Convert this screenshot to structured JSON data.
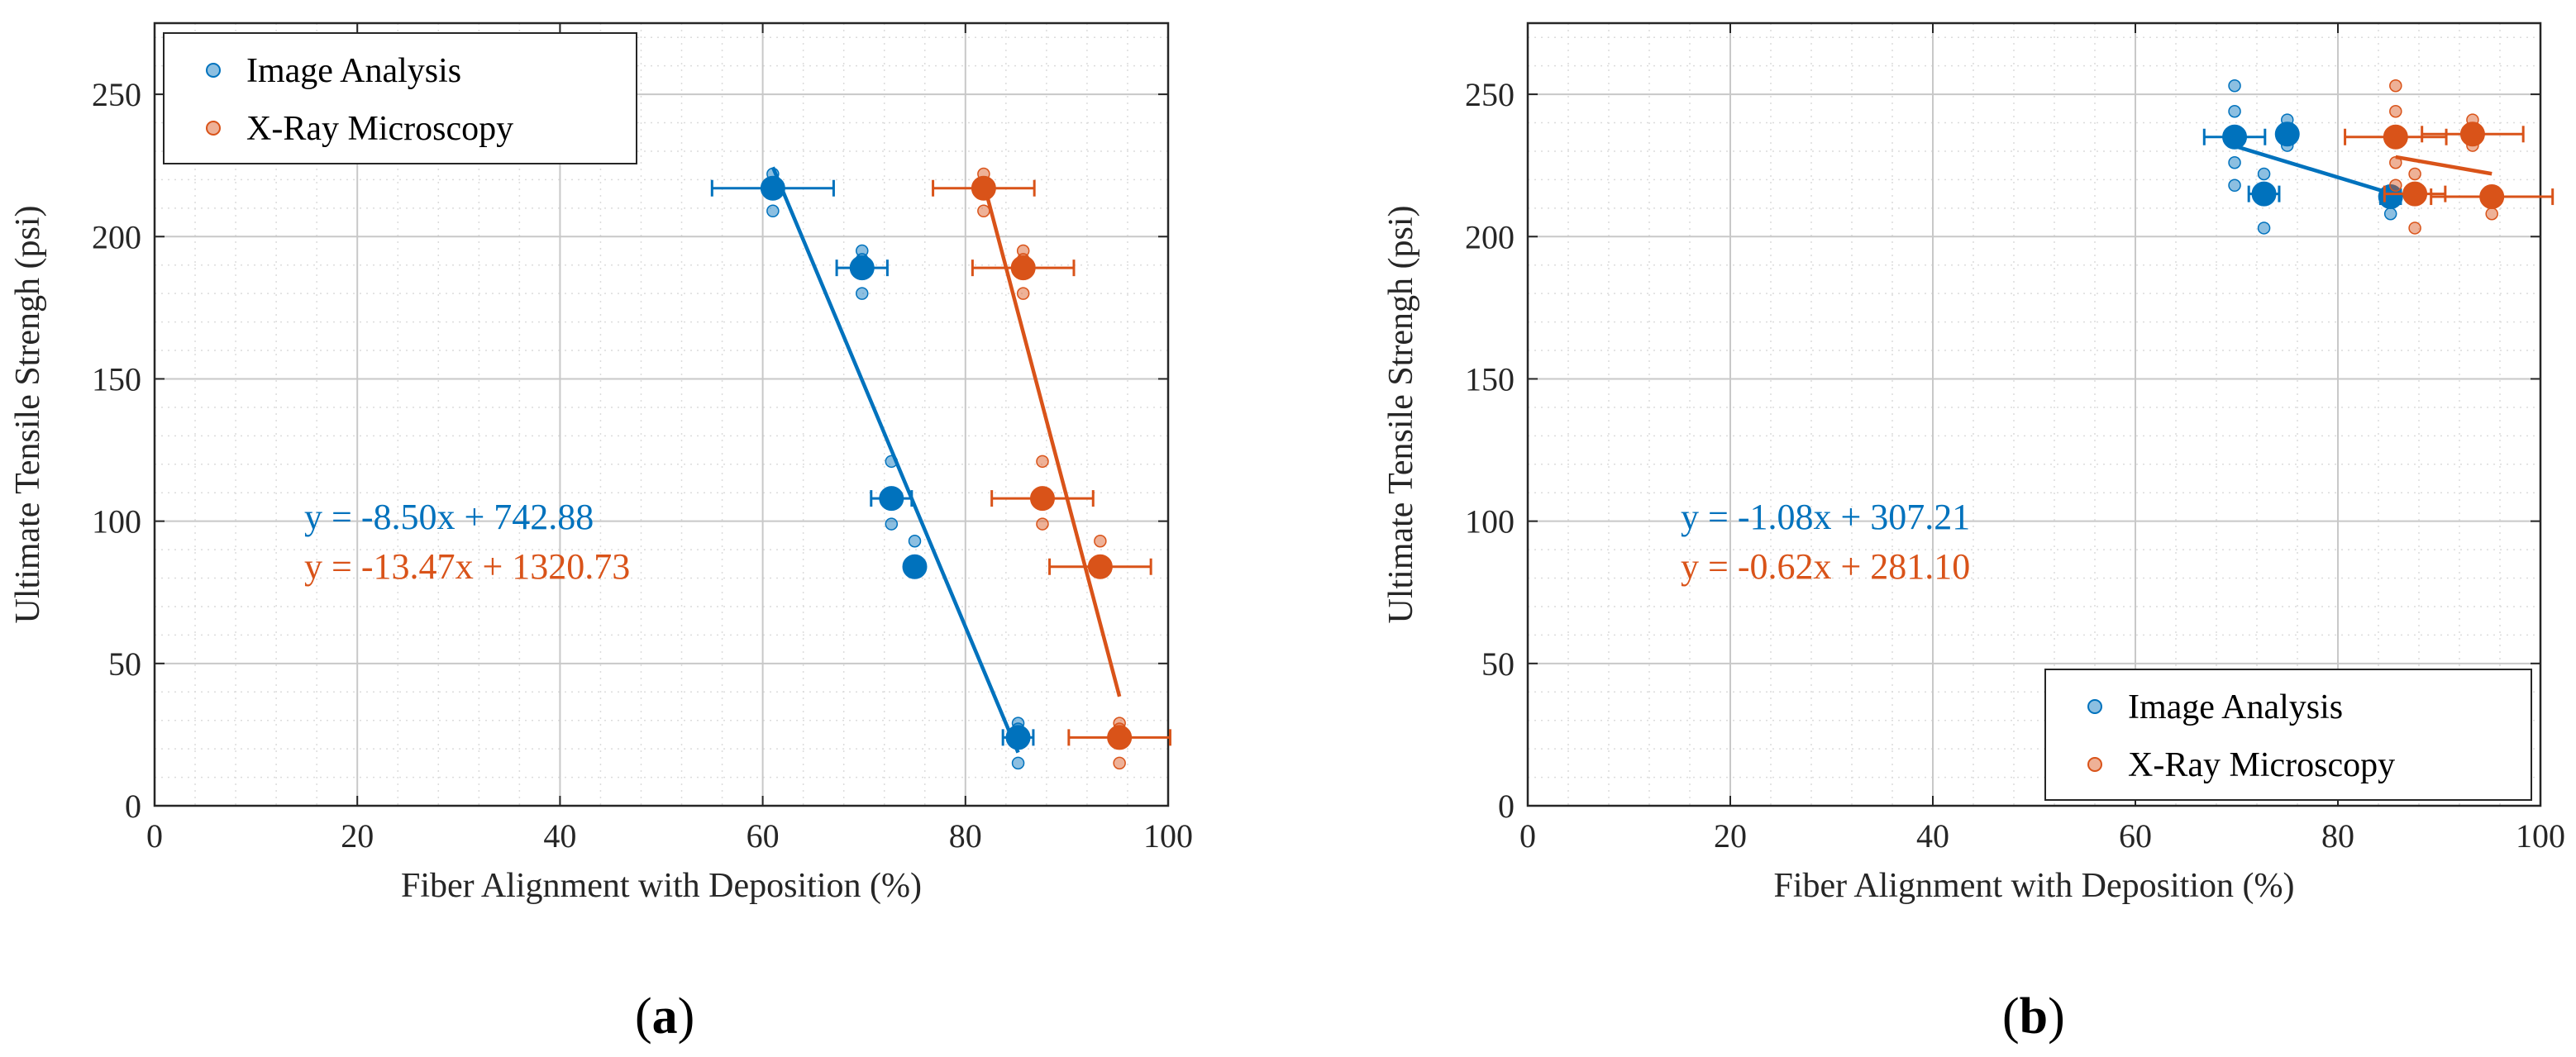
{
  "colors": {
    "blue": "#0072BD",
    "orange": "#D95319",
    "grid_major": "#c8c8c8",
    "grid_minor": "#dcdcdc",
    "axis": "#262626"
  },
  "chart_data": [
    {
      "type": "scatter",
      "panel_label": "a",
      "xlabel": "Fiber Alignment with Deposition (%)",
      "ylabel": "Ultimate Tensile Strengh (psi)",
      "xlim": [
        0,
        100
      ],
      "ylim": [
        0,
        275
      ],
      "xticks": [
        0,
        20,
        40,
        60,
        80,
        100
      ],
      "yticks": [
        0,
        50,
        100,
        150,
        200,
        250
      ],
      "grid": true,
      "minor_grid": true,
      "legend_position": "top-left",
      "series": [
        {
          "name": "Image Analysis",
          "color": "blue",
          "equation": "y = -8.50x + 742.88",
          "fit": {
            "slope": -8.5,
            "intercept": 742.88,
            "x_range": [
              61,
              85.2
            ]
          },
          "means": [
            {
              "x": 61.0,
              "y": 217,
              "xerr": 6
            },
            {
              "x": 69.8,
              "y": 189,
              "xerr": 2.5
            },
            {
              "x": 72.7,
              "y": 108,
              "xerr": 2
            },
            {
              "x": 75.0,
              "y": 84,
              "xerr": 0
            },
            {
              "x": 85.2,
              "y": 24,
              "xerr": 1.5
            }
          ],
          "samples": [
            {
              "x": 61.0,
              "y": 222
            },
            {
              "x": 61.0,
              "y": 209
            },
            {
              "x": 69.8,
              "y": 195
            },
            {
              "x": 69.8,
              "y": 180
            },
            {
              "x": 69.8,
              "y": 192
            },
            {
              "x": 72.7,
              "y": 121
            },
            {
              "x": 72.7,
              "y": 99
            },
            {
              "x": 75.0,
              "y": 93
            },
            {
              "x": 75.0,
              "y": 86
            },
            {
              "x": 85.2,
              "y": 29
            },
            {
              "x": 85.2,
              "y": 15
            },
            {
              "x": 85.2,
              "y": 27
            }
          ]
        },
        {
          "name": "X-Ray Microscopy",
          "color": "orange",
          "equation": "y = -13.47x + 1320.73",
          "fit": {
            "slope": -13.47,
            "intercept": 1320.73,
            "x_range": [
              82,
              95.2
            ]
          },
          "means": [
            {
              "x": 81.8,
              "y": 217,
              "xerr": 5
            },
            {
              "x": 85.7,
              "y": 189,
              "xerr": 5
            },
            {
              "x": 87.6,
              "y": 108,
              "xerr": 5
            },
            {
              "x": 93.3,
              "y": 84,
              "xerr": 5
            },
            {
              "x": 95.2,
              "y": 24,
              "xerr": 5
            }
          ],
          "samples": [
            {
              "x": 81.8,
              "y": 222
            },
            {
              "x": 81.8,
              "y": 209
            },
            {
              "x": 85.7,
              "y": 195
            },
            {
              "x": 85.7,
              "y": 180
            },
            {
              "x": 85.7,
              "y": 192
            },
            {
              "x": 87.6,
              "y": 121
            },
            {
              "x": 87.6,
              "y": 99
            },
            {
              "x": 93.3,
              "y": 93
            },
            {
              "x": 93.3,
              "y": 86
            },
            {
              "x": 95.2,
              "y": 29
            },
            {
              "x": 95.2,
              "y": 15
            },
            {
              "x": 95.2,
              "y": 27
            }
          ]
        }
      ]
    },
    {
      "type": "scatter",
      "panel_label": "b",
      "xlabel": "Fiber Alignment with Deposition (%)",
      "ylabel": "Ultimate Tensile Strengh (psi)",
      "xlim": [
        0,
        100
      ],
      "ylim": [
        0,
        275
      ],
      "xticks": [
        0,
        20,
        40,
        60,
        80,
        100
      ],
      "yticks": [
        0,
        50,
        100,
        150,
        200,
        250
      ],
      "grid": true,
      "minor_grid": true,
      "legend_position": "bottom-right",
      "series": [
        {
          "name": "Image Analysis",
          "color": "blue",
          "equation": "y = -1.08x + 307.21",
          "fit": {
            "slope": -1.08,
            "intercept": 307.21,
            "x_range": [
              69.8,
              85.2
            ]
          },
          "means": [
            {
              "x": 69.8,
              "y": 235,
              "xerr": 3
            },
            {
              "x": 72.7,
              "y": 215,
              "xerr": 1.5
            },
            {
              "x": 75.0,
              "y": 236,
              "xerr": 0.5
            },
            {
              "x": 85.2,
              "y": 214,
              "xerr": 1
            }
          ],
          "samples": [
            {
              "x": 69.8,
              "y": 253
            },
            {
              "x": 69.8,
              "y": 244
            },
            {
              "x": 69.8,
              "y": 226
            },
            {
              "x": 69.8,
              "y": 218
            },
            {
              "x": 72.7,
              "y": 222
            },
            {
              "x": 72.7,
              "y": 203
            },
            {
              "x": 75.0,
              "y": 241
            },
            {
              "x": 75.0,
              "y": 232
            },
            {
              "x": 85.2,
              "y": 216
            },
            {
              "x": 85.2,
              "y": 208
            }
          ]
        },
        {
          "name": "X-Ray Microscopy",
          "color": "orange",
          "equation": "y = -0.62x + 281.10",
          "fit": {
            "slope": -0.62,
            "intercept": 281.1,
            "x_range": [
              85.7,
              95.2
            ]
          },
          "means": [
            {
              "x": 85.7,
              "y": 235,
              "xerr": 5
            },
            {
              "x": 87.6,
              "y": 215,
              "xerr": 3
            },
            {
              "x": 93.3,
              "y": 236,
              "xerr": 5
            },
            {
              "x": 95.2,
              "y": 214,
              "xerr": 6
            }
          ],
          "samples": [
            {
              "x": 85.7,
              "y": 253
            },
            {
              "x": 85.7,
              "y": 244
            },
            {
              "x": 85.7,
              "y": 226
            },
            {
              "x": 85.7,
              "y": 218
            },
            {
              "x": 87.6,
              "y": 222
            },
            {
              "x": 87.6,
              "y": 203
            },
            {
              "x": 93.3,
              "y": 241
            },
            {
              "x": 93.3,
              "y": 232
            },
            {
              "x": 95.2,
              "y": 216
            },
            {
              "x": 95.2,
              "y": 208
            }
          ]
        }
      ]
    }
  ]
}
